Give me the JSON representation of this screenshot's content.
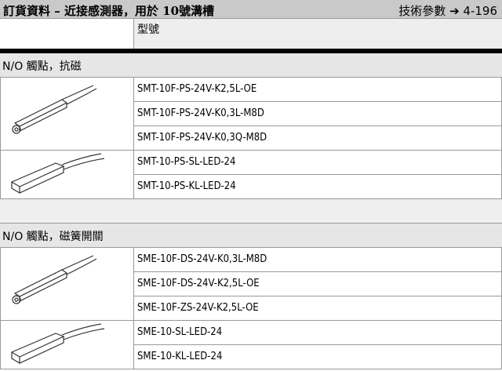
{
  "header": {
    "title": "訂貨資料 – 近接感測器，用於 10號溝槽",
    "reference": "技術參數 ➔ 4-196"
  },
  "table": {
    "column_header": "型號",
    "sections": [
      {
        "title": "N/O 觸點，抗磁",
        "groups": [
          {
            "models": [
              "SMT-10F-PS-24V-K2,5L-OE",
              "SMT-10F-PS-24V-K0,3L-M8D",
              "SMT-10F-PS-24V-K0,3Q-M8D"
            ]
          },
          {
            "models": [
              "SMT-10-PS-SL-LED-24",
              "SMT-10-PS-KL-LED-24"
            ]
          }
        ]
      },
      {
        "title": "N/O 觸點，磁簧開關",
        "groups": [
          {
            "models": [
              "SME-10F-DS-24V-K0,3L-M8D",
              "SME-10F-DS-24V-K2,5L-OE",
              "SME-10F-ZS-24V-K2,5L-OE"
            ]
          },
          {
            "models": [
              "SME-10-SL-LED-24",
              "SME-10-KL-LED-24"
            ]
          }
        ]
      }
    ]
  }
}
